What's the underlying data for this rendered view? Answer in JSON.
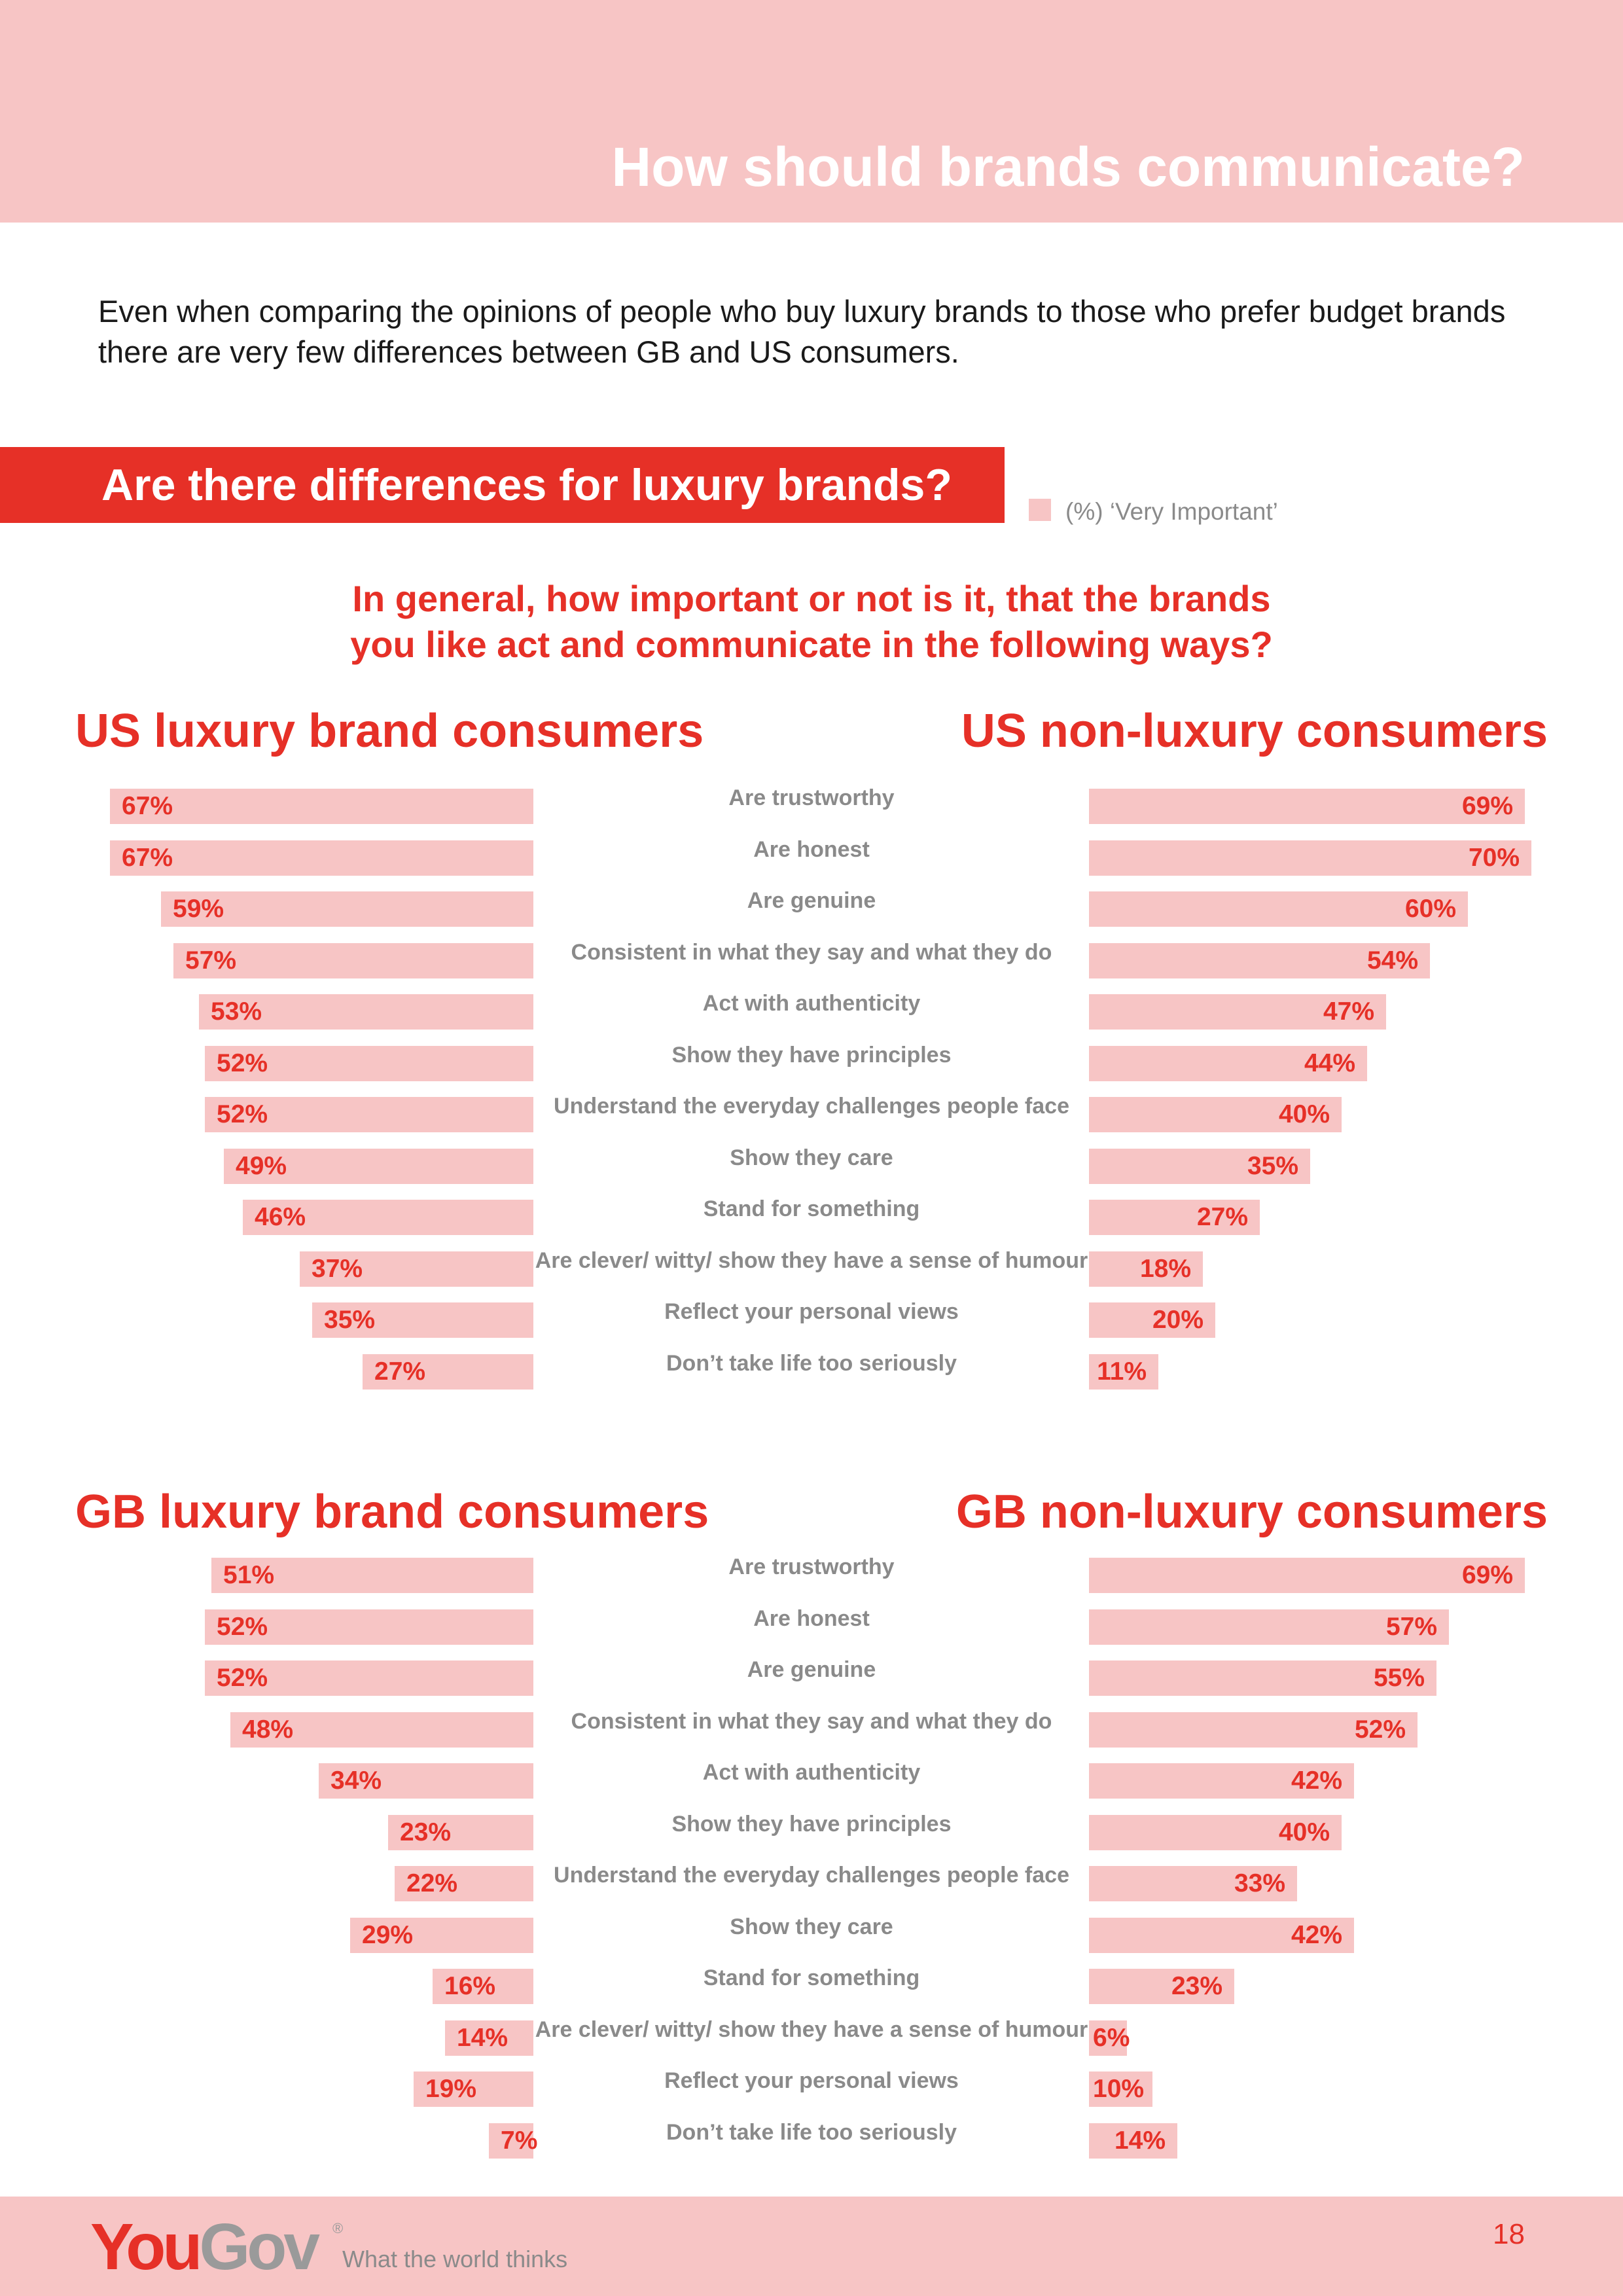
{
  "header": {
    "title": "How should brands communicate?"
  },
  "intro": "Even when comparing the opinions of people who buy luxury brands to those who prefer budget brands there are very few differences between GB and US consumers.",
  "section": {
    "title": "Are there differences for luxury brands?",
    "legend": "(%) ‘Very Important’"
  },
  "question": {
    "line1": "In general, how important or not is it, that the brands",
    "line2": "you like act and communicate in the following ways?"
  },
  "colors": {
    "accent": "#e63027",
    "bar": "#f7c5c5",
    "label": "#8a8a8a"
  },
  "chart_data": [
    {
      "type": "bar",
      "title": "US luxury brand consumers",
      "orientation": "horizontal",
      "categories": [
        "Are trustworthy",
        "Are honest",
        "Are genuine",
        "Consistent in what they say and what they do",
        "Act with authenticity",
        "Show they have principles",
        "Understand the everyday challenges people face",
        "Show they care",
        "Stand for something",
        "Are clever/ witty/ show they have a sense of humour",
        "Reflect your personal views",
        "Don’t take life too seriously"
      ],
      "values": [
        67,
        67,
        59,
        57,
        53,
        52,
        52,
        49,
        46,
        37,
        35,
        27
      ],
      "value_labels": [
        "67%",
        "67%",
        "59%",
        "57%",
        "53%",
        "52%",
        "52%",
        "49%",
        "46%",
        "37%",
        "35%",
        "27%"
      ]
    },
    {
      "type": "bar",
      "title": "US non-luxury consumers",
      "orientation": "horizontal",
      "categories": [
        "Are trustworthy",
        "Are honest",
        "Are genuine",
        "Consistent in what they say and what they do",
        "Act with authenticity",
        "Show they have principles",
        "Understand the everyday challenges people face",
        "Show they care",
        "Stand for something",
        "Are clever/ witty/ show they have a sense of humour",
        "Reflect your personal views",
        "Don’t take life too seriously"
      ],
      "values": [
        69,
        70,
        60,
        54,
        47,
        44,
        40,
        35,
        27,
        18,
        20,
        11
      ],
      "value_labels": [
        "69%",
        "70%",
        "60%",
        "54%",
        "47%",
        "44%",
        "40%",
        "35%",
        "27%",
        "18%",
        "20%",
        "11%"
      ]
    },
    {
      "type": "bar",
      "title": "GB luxury brand consumers",
      "orientation": "horizontal",
      "categories": [
        "Are trustworthy",
        "Are honest",
        "Are genuine",
        "Consistent in what they say and what they do",
        "Act with authenticity",
        "Show they have principles",
        "Understand the everyday challenges people face",
        "Show they care",
        "Stand for something",
        "Are clever/ witty/ show they have a sense of humour",
        "Reflect your personal views",
        "Don’t take life too seriously"
      ],
      "values": [
        51,
        52,
        52,
        48,
        34,
        23,
        22,
        29,
        16,
        14,
        19,
        7
      ],
      "value_labels": [
        "51%",
        "52%",
        "52%",
        "48%",
        "34%",
        "23%",
        "22%",
        "29%",
        "16%",
        "14%",
        "19%",
        "7%"
      ]
    },
    {
      "type": "bar",
      "title": "GB non-luxury consumers",
      "orientation": "horizontal",
      "categories": [
        "Are trustworthy",
        "Are honest",
        "Are genuine",
        "Consistent in what they say and what they do",
        "Act with authenticity",
        "Show they have principles",
        "Understand the everyday challenges people face",
        "Show they care",
        "Stand for something",
        "Are clever/ witty/ show they have a sense of humour",
        "Reflect your personal views",
        "Don’t take life too seriously"
      ],
      "values": [
        69,
        57,
        55,
        52,
        42,
        40,
        33,
        42,
        23,
        6,
        10,
        14
      ],
      "value_labels": [
        "69%",
        "57%",
        "55%",
        "52%",
        "42%",
        "40%",
        "33%",
        "42%",
        "23%",
        "6%",
        "10%",
        "14%"
      ]
    }
  ],
  "footer": {
    "logo_you": "You",
    "logo_gov": "Gov",
    "logo_reg": "®",
    "tagline": "What the world thinks",
    "page_number": "18"
  }
}
